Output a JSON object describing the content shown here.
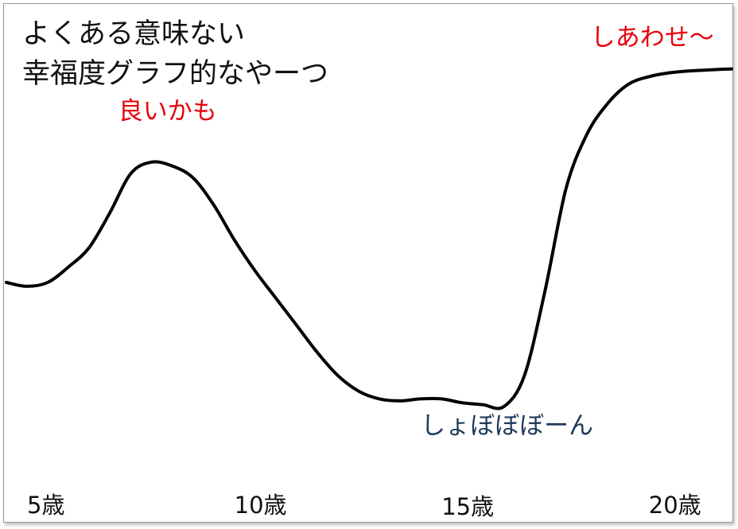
{
  "chart_data": {
    "type": "line",
    "title_lines": [
      "よくある意味ない",
      "幸福度グラフ的なやーつ"
    ],
    "x_ticks": [
      {
        "x": 5,
        "label": "5歳"
      },
      {
        "x": 10,
        "label": "10歳"
      },
      {
        "x": 15,
        "label": "15歳"
      },
      {
        "x": 20,
        "label": "20歳"
      }
    ],
    "xlim": [
      4.5,
      22
    ],
    "ylim": [
      0,
      100
    ],
    "series": [
      {
        "color": "#000000",
        "points": [
          [
            4.5,
            42
          ],
          [
            5,
            41
          ],
          [
            5.5,
            42
          ],
          [
            6,
            46
          ],
          [
            6.5,
            51
          ],
          [
            7,
            60
          ],
          [
            7.5,
            70
          ],
          [
            8,
            73
          ],
          [
            8.5,
            72
          ],
          [
            9,
            69
          ],
          [
            9.5,
            62
          ],
          [
            10,
            53
          ],
          [
            10.5,
            45
          ],
          [
            11,
            38
          ],
          [
            11.5,
            31
          ],
          [
            12,
            24
          ],
          [
            12.5,
            18
          ],
          [
            13,
            14
          ],
          [
            13.5,
            12
          ],
          [
            14,
            11.5
          ],
          [
            14.5,
            12
          ],
          [
            15,
            12
          ],
          [
            15.5,
            11
          ],
          [
            16,
            10.5
          ],
          [
            16.5,
            10
          ],
          [
            17,
            18
          ],
          [
            17.5,
            40
          ],
          [
            18,
            66
          ],
          [
            18.5,
            80
          ],
          [
            19,
            88
          ],
          [
            19.5,
            93
          ],
          [
            20,
            95
          ],
          [
            20.5,
            96
          ],
          [
            21,
            96.5
          ],
          [
            22,
            97
          ]
        ]
      }
    ],
    "annotations": [
      {
        "text": "良いかも",
        "x": 7.2,
        "y": 84,
        "color": "#e8000b"
      },
      {
        "text": "しょぼぼぼーん",
        "x": 14.5,
        "y": 3,
        "color": "#1f3a5a"
      },
      {
        "text": "しあわせ〜",
        "x": 18.6,
        "y": 103,
        "color": "#e8000b"
      }
    ],
    "grid": false,
    "legend": "none"
  }
}
